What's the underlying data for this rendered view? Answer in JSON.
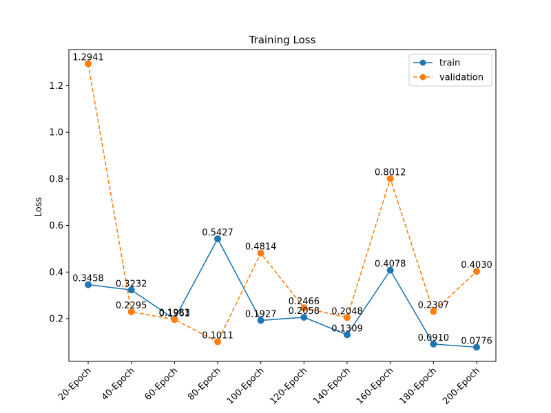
{
  "chart_data": {
    "type": "line",
    "title": "Training Loss",
    "xlabel": "",
    "ylabel": "Loss",
    "categories": [
      "20-Epoch",
      "40-Epoch",
      "60-Epoch",
      "80-Epoch",
      "100-Epoch",
      "120-Epoch",
      "140-Epoch",
      "160-Epoch",
      "180-Epoch",
      "200-Epoch"
    ],
    "ylim": [
      0.0167,
      1.355
    ],
    "yticks": [
      0.2,
      0.4,
      0.6,
      0.8,
      1.0,
      1.2
    ],
    "ytick_labels": [
      "0.2",
      "0.4",
      "0.6",
      "0.8",
      "1.0",
      "1.2"
    ],
    "legend_position": "top-right",
    "grid": false,
    "series": [
      {
        "name": "train",
        "color": "#1f77b4",
        "line_style": "solid",
        "marker": "circle",
        "values": [
          0.3458,
          0.3232,
          0.1983,
          0.5427,
          0.1927,
          0.2058,
          0.1309,
          0.4078,
          0.091,
          0.0776
        ],
        "labels": [
          "0.3458",
          "0.3232",
          "0.1983",
          "0.5427",
          "0.1927",
          "0.2058",
          "0.1309",
          "0.4078",
          "0.0910",
          "0.0776"
        ]
      },
      {
        "name": "validation",
        "color": "#ff7f0e",
        "line_style": "dashed",
        "marker": "circle",
        "values": [
          1.2941,
          0.2295,
          0.1961,
          0.1011,
          0.4814,
          0.2466,
          0.2048,
          0.8012,
          0.2307,
          0.403
        ],
        "labels": [
          "1.2941",
          "0.2295",
          "0.1961",
          "0.1011",
          "0.4814",
          "0.2466",
          "0.2048",
          "0.8012",
          "0.2307",
          "0.4030"
        ]
      }
    ]
  }
}
